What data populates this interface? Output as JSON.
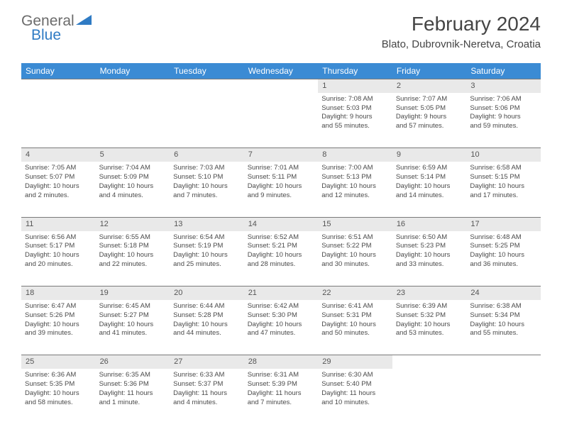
{
  "logo": {
    "text1": "General",
    "text2": "Blue"
  },
  "title": "February 2024",
  "location": "Blato, Dubrovnik-Neretva, Croatia",
  "colors": {
    "header_bg": "#3b8bd4",
    "header_text": "#ffffff",
    "daynum_bg": "#e9e9e9",
    "border": "#7a7a7a",
    "body_text": "#4a4a4a",
    "logo_gray": "#6b6b6b",
    "logo_blue": "#2f7bc4"
  },
  "weekdays": [
    "Sunday",
    "Monday",
    "Tuesday",
    "Wednesday",
    "Thursday",
    "Friday",
    "Saturday"
  ],
  "weeks": [
    [
      null,
      null,
      null,
      null,
      {
        "n": "1",
        "sr": "Sunrise: 7:08 AM",
        "ss": "Sunset: 5:03 PM",
        "d1": "Daylight: 9 hours",
        "d2": "and 55 minutes."
      },
      {
        "n": "2",
        "sr": "Sunrise: 7:07 AM",
        "ss": "Sunset: 5:05 PM",
        "d1": "Daylight: 9 hours",
        "d2": "and 57 minutes."
      },
      {
        "n": "3",
        "sr": "Sunrise: 7:06 AM",
        "ss": "Sunset: 5:06 PM",
        "d1": "Daylight: 9 hours",
        "d2": "and 59 minutes."
      }
    ],
    [
      {
        "n": "4",
        "sr": "Sunrise: 7:05 AM",
        "ss": "Sunset: 5:07 PM",
        "d1": "Daylight: 10 hours",
        "d2": "and 2 minutes."
      },
      {
        "n": "5",
        "sr": "Sunrise: 7:04 AM",
        "ss": "Sunset: 5:09 PM",
        "d1": "Daylight: 10 hours",
        "d2": "and 4 minutes."
      },
      {
        "n": "6",
        "sr": "Sunrise: 7:03 AM",
        "ss": "Sunset: 5:10 PM",
        "d1": "Daylight: 10 hours",
        "d2": "and 7 minutes."
      },
      {
        "n": "7",
        "sr": "Sunrise: 7:01 AM",
        "ss": "Sunset: 5:11 PM",
        "d1": "Daylight: 10 hours",
        "d2": "and 9 minutes."
      },
      {
        "n": "8",
        "sr": "Sunrise: 7:00 AM",
        "ss": "Sunset: 5:13 PM",
        "d1": "Daylight: 10 hours",
        "d2": "and 12 minutes."
      },
      {
        "n": "9",
        "sr": "Sunrise: 6:59 AM",
        "ss": "Sunset: 5:14 PM",
        "d1": "Daylight: 10 hours",
        "d2": "and 14 minutes."
      },
      {
        "n": "10",
        "sr": "Sunrise: 6:58 AM",
        "ss": "Sunset: 5:15 PM",
        "d1": "Daylight: 10 hours",
        "d2": "and 17 minutes."
      }
    ],
    [
      {
        "n": "11",
        "sr": "Sunrise: 6:56 AM",
        "ss": "Sunset: 5:17 PM",
        "d1": "Daylight: 10 hours",
        "d2": "and 20 minutes."
      },
      {
        "n": "12",
        "sr": "Sunrise: 6:55 AM",
        "ss": "Sunset: 5:18 PM",
        "d1": "Daylight: 10 hours",
        "d2": "and 22 minutes."
      },
      {
        "n": "13",
        "sr": "Sunrise: 6:54 AM",
        "ss": "Sunset: 5:19 PM",
        "d1": "Daylight: 10 hours",
        "d2": "and 25 minutes."
      },
      {
        "n": "14",
        "sr": "Sunrise: 6:52 AM",
        "ss": "Sunset: 5:21 PM",
        "d1": "Daylight: 10 hours",
        "d2": "and 28 minutes."
      },
      {
        "n": "15",
        "sr": "Sunrise: 6:51 AM",
        "ss": "Sunset: 5:22 PM",
        "d1": "Daylight: 10 hours",
        "d2": "and 30 minutes."
      },
      {
        "n": "16",
        "sr": "Sunrise: 6:50 AM",
        "ss": "Sunset: 5:23 PM",
        "d1": "Daylight: 10 hours",
        "d2": "and 33 minutes."
      },
      {
        "n": "17",
        "sr": "Sunrise: 6:48 AM",
        "ss": "Sunset: 5:25 PM",
        "d1": "Daylight: 10 hours",
        "d2": "and 36 minutes."
      }
    ],
    [
      {
        "n": "18",
        "sr": "Sunrise: 6:47 AM",
        "ss": "Sunset: 5:26 PM",
        "d1": "Daylight: 10 hours",
        "d2": "and 39 minutes."
      },
      {
        "n": "19",
        "sr": "Sunrise: 6:45 AM",
        "ss": "Sunset: 5:27 PM",
        "d1": "Daylight: 10 hours",
        "d2": "and 41 minutes."
      },
      {
        "n": "20",
        "sr": "Sunrise: 6:44 AM",
        "ss": "Sunset: 5:28 PM",
        "d1": "Daylight: 10 hours",
        "d2": "and 44 minutes."
      },
      {
        "n": "21",
        "sr": "Sunrise: 6:42 AM",
        "ss": "Sunset: 5:30 PM",
        "d1": "Daylight: 10 hours",
        "d2": "and 47 minutes."
      },
      {
        "n": "22",
        "sr": "Sunrise: 6:41 AM",
        "ss": "Sunset: 5:31 PM",
        "d1": "Daylight: 10 hours",
        "d2": "and 50 minutes."
      },
      {
        "n": "23",
        "sr": "Sunrise: 6:39 AM",
        "ss": "Sunset: 5:32 PM",
        "d1": "Daylight: 10 hours",
        "d2": "and 53 minutes."
      },
      {
        "n": "24",
        "sr": "Sunrise: 6:38 AM",
        "ss": "Sunset: 5:34 PM",
        "d1": "Daylight: 10 hours",
        "d2": "and 55 minutes."
      }
    ],
    [
      {
        "n": "25",
        "sr": "Sunrise: 6:36 AM",
        "ss": "Sunset: 5:35 PM",
        "d1": "Daylight: 10 hours",
        "d2": "and 58 minutes."
      },
      {
        "n": "26",
        "sr": "Sunrise: 6:35 AM",
        "ss": "Sunset: 5:36 PM",
        "d1": "Daylight: 11 hours",
        "d2": "and 1 minute."
      },
      {
        "n": "27",
        "sr": "Sunrise: 6:33 AM",
        "ss": "Sunset: 5:37 PM",
        "d1": "Daylight: 11 hours",
        "d2": "and 4 minutes."
      },
      {
        "n": "28",
        "sr": "Sunrise: 6:31 AM",
        "ss": "Sunset: 5:39 PM",
        "d1": "Daylight: 11 hours",
        "d2": "and 7 minutes."
      },
      {
        "n": "29",
        "sr": "Sunrise: 6:30 AM",
        "ss": "Sunset: 5:40 PM",
        "d1": "Daylight: 11 hours",
        "d2": "and 10 minutes."
      },
      null,
      null
    ]
  ]
}
